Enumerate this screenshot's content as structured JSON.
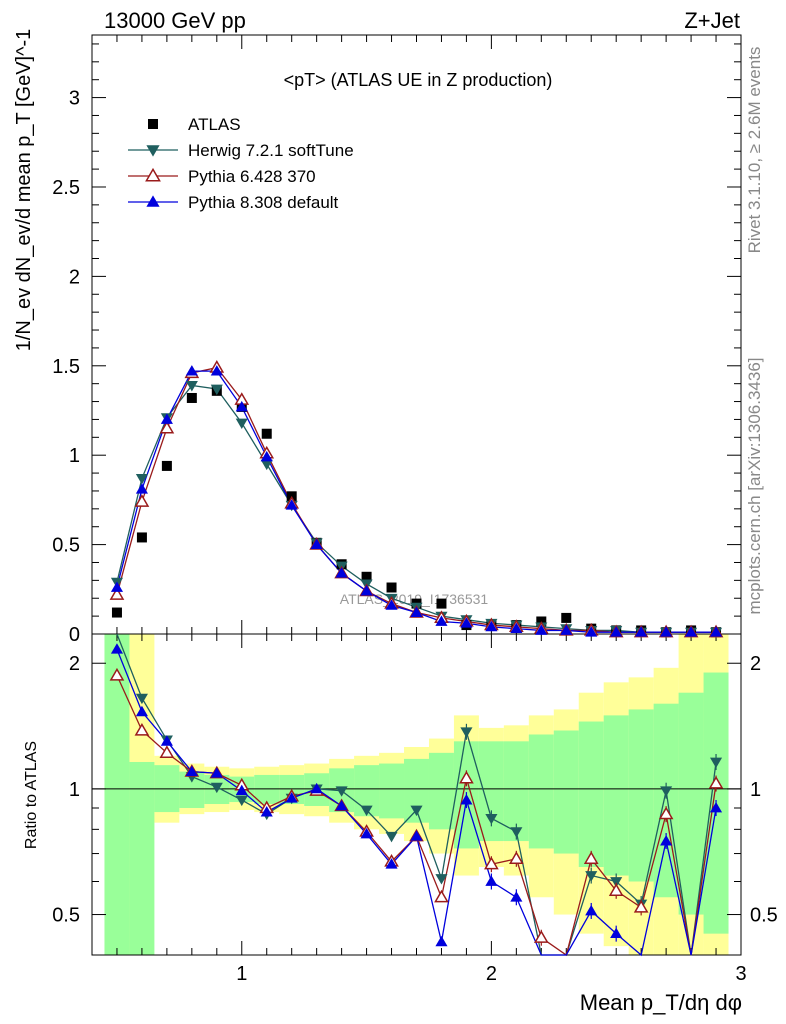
{
  "header": {
    "left": "13000 GeV pp",
    "right": "Z+Jet"
  },
  "side_labels": {
    "rivet": "Rivet 3.1.10, ≥ 2.6M events",
    "mcplots": "mcplots.cern.ch [arXiv:1306.3436]"
  },
  "plot_title": "<pT> (ATLAS UE in Z production)",
  "watermark": "ATLAS_2019_I1736531",
  "axes": {
    "xlabel": "Mean p_T/dη dφ",
    "ylabel_main": "1/N_ev dN_ev/d mean p_T [GeV]^-1",
    "ylabel_ratio": "Ratio to ATLAS",
    "x_ticks": [
      "1",
      "2",
      "3"
    ],
    "y_ticks_main": [
      "0",
      "0.5",
      "1",
      "1.5",
      "2",
      "2.5",
      "3"
    ],
    "y_ticks_ratio": [
      "0.5",
      "1",
      "2"
    ]
  },
  "legend": [
    {
      "label": "ATLAS",
      "marker": "square",
      "color": "#000000"
    },
    {
      "label": "Herwig 7.2.1 softTune",
      "marker": "triangle-down",
      "color": "#1f5f5f"
    },
    {
      "label": "Pythia 6.428 370",
      "marker": "triangle-up-open",
      "color": "#9a1b1b"
    },
    {
      "label": "Pythia 8.308 default",
      "marker": "triangle-up",
      "color": "#0000dd"
    }
  ],
  "chart_data": {
    "type": "scatter",
    "xlim": [
      0.4,
      3.0
    ],
    "ylim_main": [
      0,
      3.35
    ],
    "ylim_ratio": [
      0.4,
      2.35
    ],
    "ratio_log_scale": true,
    "x": [
      0.5,
      0.6,
      0.7,
      0.8,
      0.9,
      1.0,
      1.1,
      1.2,
      1.3,
      1.4,
      1.5,
      1.6,
      1.7,
      1.8,
      1.9,
      2.0,
      2.1,
      2.2,
      2.3,
      2.4,
      2.5,
      2.6,
      2.7,
      2.8,
      2.9
    ],
    "bin_edges": [
      0.45,
      0.55,
      0.65,
      0.75,
      0.85,
      0.95,
      1.05,
      1.15,
      1.25,
      1.35,
      1.45,
      1.55,
      1.65,
      1.75,
      1.85,
      1.95,
      2.05,
      2.15,
      2.25,
      2.35,
      2.45,
      2.55,
      2.65,
      2.75,
      2.85,
      2.95
    ],
    "series": [
      {
        "name": "ATLAS",
        "color": "#000000",
        "marker": "square",
        "values": [
          0.12,
          0.54,
          0.94,
          1.32,
          1.36,
          1.27,
          1.12,
          0.77,
          0.51,
          0.39,
          0.32,
          0.26,
          0.17,
          0.17,
          0.05,
          0.05,
          0.05,
          0.07,
          0.09,
          0.03,
          0.02,
          0.02,
          0.01,
          0.02,
          0.01
        ]
      },
      {
        "name": "Herwig 7.2.1 softTune",
        "color": "#1f5f5f",
        "marker": "triangle-down",
        "values": [
          0.29,
          0.87,
          1.21,
          1.39,
          1.37,
          1.18,
          0.95,
          0.72,
          0.51,
          0.38,
          0.28,
          0.2,
          0.15,
          0.1,
          0.08,
          0.06,
          0.05,
          0.04,
          0.03,
          0.02,
          0.02,
          0.01,
          0.01,
          0.01,
          0.01
        ]
      },
      {
        "name": "Pythia 6.428 370",
        "color": "#9a1b1b",
        "marker": "triangle-up-open",
        "values": [
          0.22,
          0.74,
          1.15,
          1.46,
          1.49,
          1.31,
          1.01,
          0.73,
          0.5,
          0.34,
          0.24,
          0.17,
          0.12,
          0.09,
          0.07,
          0.05,
          0.04,
          0.03,
          0.02,
          0.02,
          0.01,
          0.01,
          0.01,
          0.01,
          0.01
        ]
      },
      {
        "name": "Pythia 8.308 default",
        "color": "#0000dd",
        "marker": "triangle-up",
        "values": [
          0.26,
          0.81,
          1.2,
          1.47,
          1.47,
          1.27,
          0.99,
          0.72,
          0.5,
          0.34,
          0.24,
          0.16,
          0.12,
          0.07,
          0.06,
          0.04,
          0.03,
          0.02,
          0.02,
          0.01,
          0.01,
          0.01,
          0.01,
          0.01,
          0.01
        ]
      }
    ],
    "ratio_series": [
      {
        "name": "Herwig 7.2.1 softTune",
        "color": "#1f5f5f",
        "marker": "triangle-down",
        "values": [
          2.35,
          1.65,
          1.31,
          1.07,
          1.01,
          0.94,
          0.87,
          0.95,
          1.0,
          0.99,
          0.89,
          0.77,
          0.89,
          0.61,
          1.37,
          0.85,
          0.79,
          0.4,
          0.3,
          0.62,
          0.6,
          0.53,
          0.99,
          0.3,
          1.16
        ]
      },
      {
        "name": "Pythia 6.428 370",
        "color": "#9a1b1b",
        "marker": "triangle-up-open",
        "values": [
          1.87,
          1.38,
          1.22,
          1.1,
          1.09,
          1.02,
          0.9,
          0.96,
          0.99,
          0.91,
          0.79,
          0.67,
          0.77,
          0.55,
          1.06,
          0.66,
          0.68,
          0.44,
          0.3,
          0.68,
          0.57,
          0.52,
          0.87,
          0.36,
          1.03
        ]
      },
      {
        "name": "Pythia 8.308 default",
        "color": "#0000dd",
        "marker": "triangle-up",
        "values": [
          2.16,
          1.53,
          1.3,
          1.1,
          1.09,
          0.99,
          0.88,
          0.95,
          1.0,
          0.91,
          0.78,
          0.66,
          0.77,
          0.43,
          0.94,
          0.6,
          0.55,
          0.3,
          0.3,
          0.51,
          0.45,
          0.3,
          0.75,
          0.3,
          0.9
        ]
      }
    ],
    "ratio_bands": {
      "inner_green": [
        [
          0.4,
          2.35
        ],
        [
          0.4,
          1.16
        ],
        [
          0.88,
          1.14
        ],
        [
          0.9,
          1.1
        ],
        [
          0.92,
          1.08
        ],
        [
          0.93,
          1.07
        ],
        [
          0.92,
          1.08
        ],
        [
          0.92,
          1.08
        ],
        [
          0.91,
          1.09
        ],
        [
          0.88,
          1.12
        ],
        [
          0.86,
          1.14
        ],
        [
          0.85,
          1.15
        ],
        [
          0.83,
          1.18
        ],
        [
          0.8,
          1.22
        ],
        [
          0.72,
          1.3
        ],
        [
          0.75,
          1.3
        ],
        [
          0.75,
          1.3
        ],
        [
          0.72,
          1.35
        ],
        [
          0.7,
          1.38
        ],
        [
          0.65,
          1.45
        ],
        [
          0.62,
          1.5
        ],
        [
          0.6,
          1.55
        ],
        [
          0.55,
          1.6
        ],
        [
          0.5,
          1.7
        ],
        [
          0.45,
          1.9
        ]
      ],
      "outer_yellow": [
        [
          0.4,
          2.35
        ],
        [
          0.79,
          2.35
        ],
        [
          0.83,
          1.2
        ],
        [
          0.87,
          1.15
        ],
        [
          0.88,
          1.13
        ],
        [
          0.89,
          1.12
        ],
        [
          0.88,
          1.13
        ],
        [
          0.87,
          1.14
        ],
        [
          0.86,
          1.15
        ],
        [
          0.83,
          1.18
        ],
        [
          0.8,
          1.2
        ],
        [
          0.78,
          1.22
        ],
        [
          0.75,
          1.26
        ],
        [
          0.7,
          1.32
        ],
        [
          0.62,
          1.5
        ],
        [
          0.65,
          1.4
        ],
        [
          0.62,
          1.42
        ],
        [
          0.55,
          1.5
        ],
        [
          0.5,
          1.55
        ],
        [
          0.45,
          1.7
        ],
        [
          0.42,
          1.8
        ],
        [
          0.4,
          1.85
        ],
        [
          0.4,
          1.95
        ],
        [
          0.4,
          2.35
        ],
        [
          0.4,
          2.35
        ]
      ]
    }
  }
}
